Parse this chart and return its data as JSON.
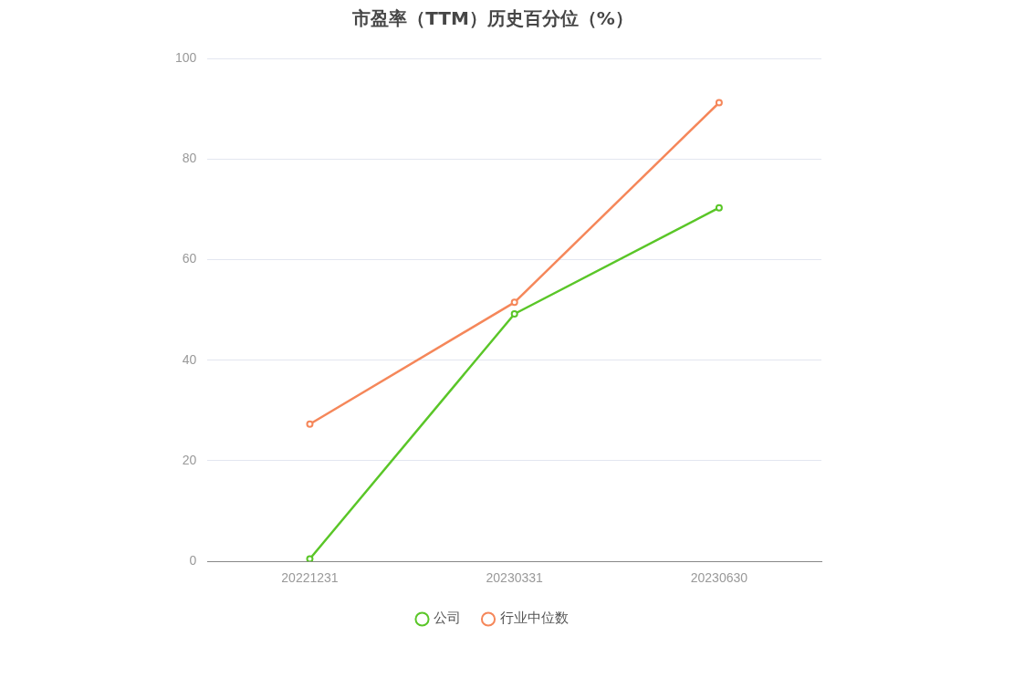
{
  "chart_data": {
    "type": "line",
    "title": "市盈率（TTM）历史百分位（%）",
    "categories": [
      "20221231",
      "20230331",
      "20230630"
    ],
    "series": [
      {
        "name": "公司",
        "color": "#5ac628",
        "values": [
          0.5,
          49.2,
          70.3
        ]
      },
      {
        "name": "行业中位数",
        "color": "#f5875a",
        "values": [
          27.3,
          51.5,
          91.2
        ]
      }
    ],
    "ylim": [
      0,
      100
    ],
    "yticks": [
      0,
      20,
      40,
      60,
      80,
      100
    ],
    "grid": "y",
    "legend": "bottom",
    "marker": "circle",
    "line_style": "solid"
  }
}
